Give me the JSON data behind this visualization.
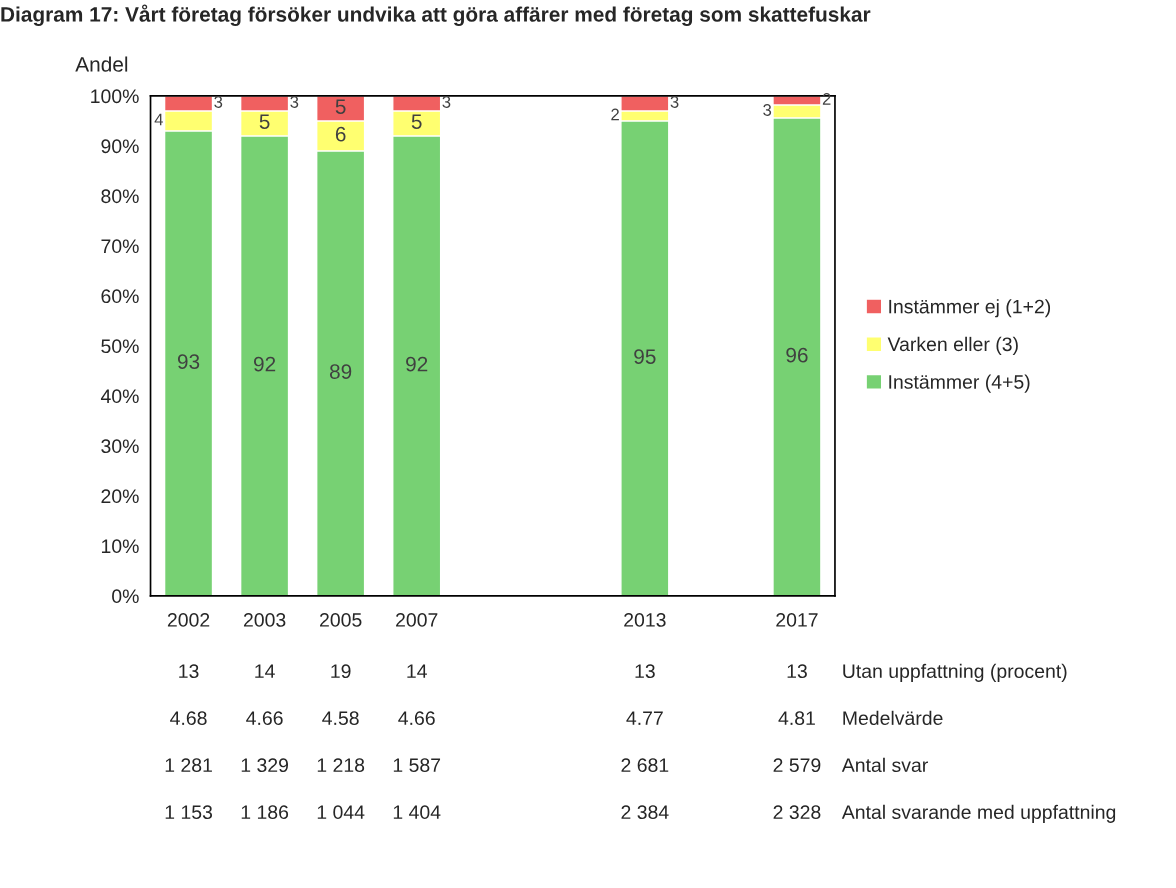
{
  "chart_data": {
    "type": "bar",
    "title": "Diagram 17: Vårt företag försöker undvika att göra affärer med företag som skattefuskar",
    "ylabel": "Andel",
    "categories": [
      "2002",
      "2003",
      "2005",
      "2007",
      null,
      null,
      "2013",
      null,
      "2017"
    ],
    "stacked": true,
    "series": [
      {
        "name": "Instämmer (4+5)",
        "color": "#77d173",
        "values": [
          93,
          92,
          89,
          92,
          null,
          null,
          95,
          null,
          95.6
        ],
        "value_labels": [
          "93",
          "92",
          "89",
          "92",
          null,
          null,
          "95",
          null,
          "96"
        ]
      },
      {
        "name": "Varken eller (3)",
        "color": "#ffff70",
        "values": [
          4,
          5,
          6,
          5,
          null,
          null,
          2,
          null,
          2.6
        ],
        "value_labels": [
          "4",
          "5",
          "6",
          "5",
          null,
          null,
          "2",
          null,
          "3"
        ]
      },
      {
        "name": "Instämmer ej (1+2)",
        "color": "#f06060",
        "values": [
          3,
          3,
          5,
          3,
          null,
          null,
          3,
          null,
          1.8
        ],
        "value_labels": [
          "3",
          "3",
          "5",
          "3",
          null,
          null,
          "3",
          null,
          "2"
        ]
      }
    ],
    "ylim": [
      0,
      100
    ],
    "yticks": [
      {
        "value": 0,
        "label": "0%"
      },
      {
        "value": 10,
        "label": "10%"
      },
      {
        "value": 20,
        "label": "20%"
      },
      {
        "value": 30,
        "label": "30%"
      },
      {
        "value": 40,
        "label": "40%"
      },
      {
        "value": 50,
        "label": "50%"
      },
      {
        "value": 60,
        "label": "60%"
      },
      {
        "value": 70,
        "label": "70%"
      },
      {
        "value": 80,
        "label": "80%"
      },
      {
        "value": 90,
        "label": "90%"
      },
      {
        "value": 100,
        "label": "100%"
      }
    ],
    "grid": false,
    "legend": "right",
    "annotations": [
      "13",
      "14",
      "19",
      "14",
      "13",
      "13",
      "Utan uppfattning (procent)",
      "4.68",
      "4.66",
      "4.58",
      "4.66",
      "4.77",
      "4.81",
      "Medelvärde",
      "1 281",
      "1 329",
      "1 218",
      "1 587",
      "2 681",
      "2 579",
      "Antal svar",
      "1 153",
      "1 186",
      "1 044",
      "1 404",
      "2 384",
      "2 328",
      "Antal svarande med uppfattning"
    ]
  }
}
